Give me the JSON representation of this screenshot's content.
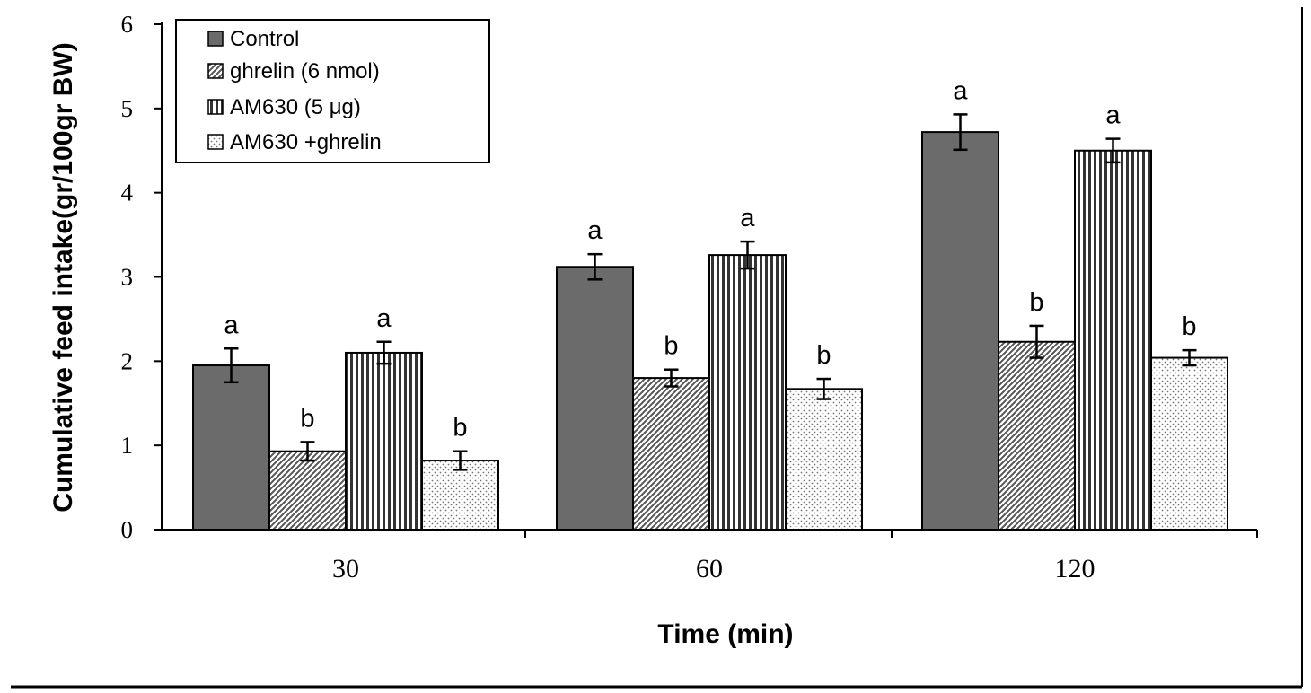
{
  "chart_data": {
    "type": "bar",
    "xlabel": "Time (min)",
    "ylabel": "Cumulative feed intake(gr/100gr BW)",
    "ylim": [
      0,
      6
    ],
    "yticks": [
      0,
      1,
      2,
      3,
      4,
      5,
      6
    ],
    "categories": [
      "30",
      "60",
      "120"
    ],
    "legend_position": "top-left",
    "grid": false,
    "series": [
      {
        "name": "Control",
        "values": [
          1.95,
          3.12,
          4.72
        ],
        "errors": [
          0.2,
          0.15,
          0.21
        ],
        "labels": [
          "a",
          "a",
          "a"
        ],
        "pattern": "solid",
        "color": "#6b6b6b"
      },
      {
        "name": "ghrelin (6 nmol)",
        "values": [
          0.93,
          1.8,
          2.23
        ],
        "errors": [
          0.11,
          0.1,
          0.19
        ],
        "labels": [
          "b",
          "b",
          "b"
        ],
        "pattern": "diagonal",
        "color": "#555555"
      },
      {
        "name": "AM630 (5 μg)",
        "values": [
          2.1,
          3.26,
          4.5
        ],
        "errors": [
          0.13,
          0.16,
          0.14
        ],
        "labels": [
          "a",
          "a",
          "a"
        ],
        "pattern": "vertical",
        "color": "#333333"
      },
      {
        "name": "AM630 +ghrelin",
        "values": [
          0.82,
          1.67,
          2.04
        ],
        "errors": [
          0.11,
          0.12,
          0.09
        ],
        "labels": [
          "b",
          "b",
          "b"
        ],
        "pattern": "dots",
        "color": "#777777"
      }
    ]
  }
}
